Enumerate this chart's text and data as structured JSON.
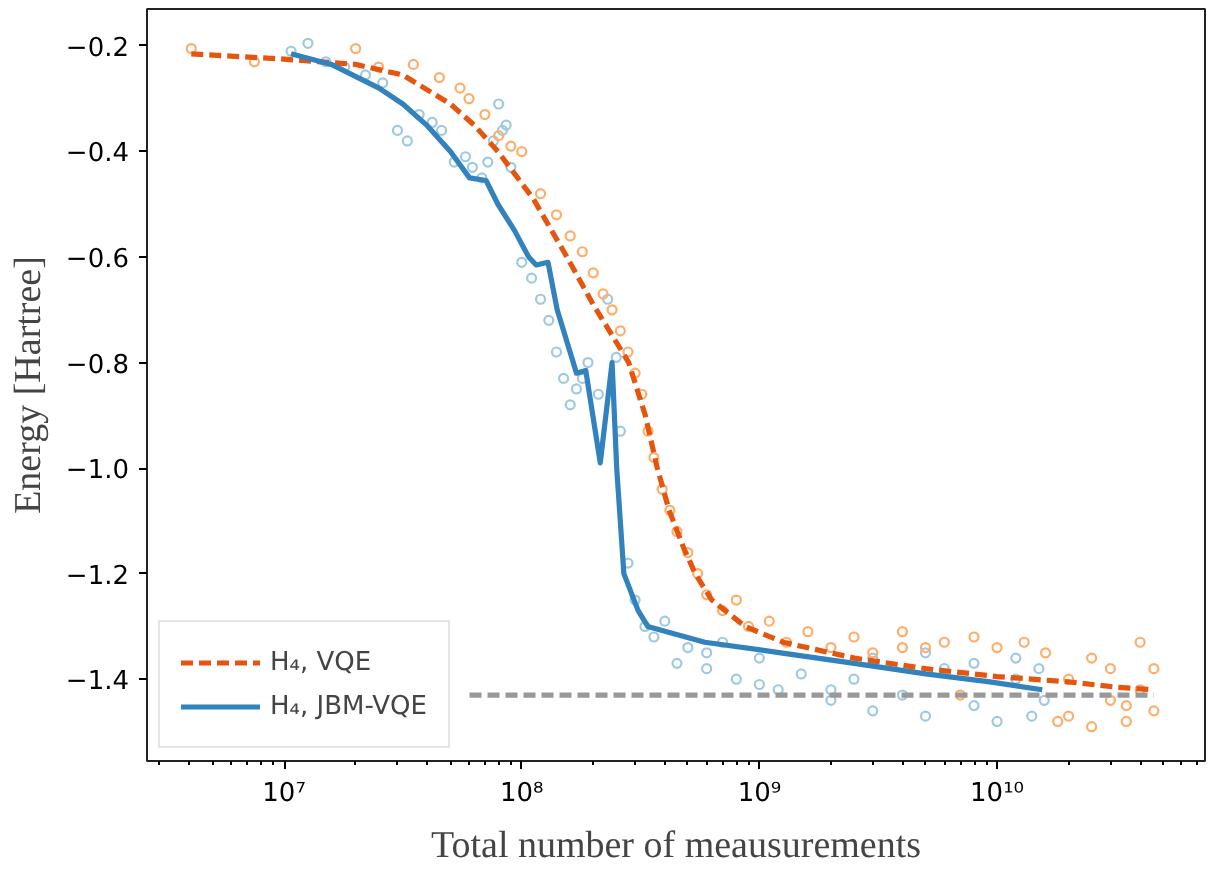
{
  "chart_data": {
    "type": "line",
    "xlabel": "Total number of meausurements",
    "ylabel": "Energy [Hartree]",
    "log": "x",
    "xlim": [
      2650000.0,
      75000000000.0
    ],
    "ylim": [
      -1.555,
      -0.13
    ],
    "xticks": [
      {
        "value": 10000000.0,
        "label": "10⁷"
      },
      {
        "value": 100000000.0,
        "label": "10⁸"
      },
      {
        "value": 1000000000.0,
        "label": "10⁹"
      },
      {
        "value": 10000000000.0,
        "label": "10¹⁰"
      }
    ],
    "yticks": [
      {
        "value": -1.4,
        "label": "−1.4"
      },
      {
        "value": -1.2,
        "label": "−1.2"
      },
      {
        "value": -1.0,
        "label": "−1.0"
      },
      {
        "value": -0.8,
        "label": "−0.8"
      },
      {
        "value": -0.6,
        "label": "−0.6"
      },
      {
        "value": -0.4,
        "label": "−0.4"
      },
      {
        "value": -0.2,
        "label": "−0.2"
      }
    ],
    "grid": false,
    "legend": "bottom left",
    "series": [
      {
        "type": "scatter",
        "marker": "circle",
        "color": "#9ecae1",
        "x": [
          10700000.0,
          12600000.0,
          15000000.0,
          18000000.0,
          22000000.0,
          26000000.0,
          30000000.0,
          33000000.0,
          37000000.0,
          42000000.0,
          46000000.0,
          52000000.0,
          58000000.0,
          62000000.0,
          68000000.0,
          72000000.0,
          76000000.0,
          80000000.0,
          83000000.0,
          86000000.0,
          90000000.0,
          100000000.0,
          110000000.0,
          120000000.0,
          130000000.0,
          140000000.0,
          150000000.0,
          160000000.0,
          170000000.0,
          180000000.0,
          190000000.0,
          210000000.0,
          230000000.0,
          250000000.0,
          260000000.0,
          280000000.0,
          300000000.0,
          330000000.0,
          360000000.0,
          400000000.0,
          450000000.0,
          500000000.0,
          600000000.0,
          700000000.0,
          800000000.0,
          1000000000.0,
          1200000000.0,
          1500000000.0,
          2000000000.0,
          2500000000.0,
          3000000000.0,
          4000000000.0,
          5000000000.0,
          6000000000.0,
          8000000000.0,
          10000000000.0,
          12000000000.0,
          14000000000.0,
          15800000000.0,
          3000000000.0,
          5000000000.0,
          8000000000.0,
          12000000000.0,
          15000000000.0,
          2000000000.0,
          1000000000.0,
          600000000.0
        ],
        "values": [
          -0.21,
          -0.195,
          -0.23,
          -0.24,
          -0.255,
          -0.27,
          -0.36,
          -0.38,
          -0.33,
          -0.345,
          -0.36,
          -0.42,
          -0.41,
          -0.43,
          -0.45,
          -0.42,
          -0.38,
          -0.31,
          -0.36,
          -0.35,
          -0.43,
          -0.61,
          -0.64,
          -0.68,
          -0.72,
          -0.78,
          -0.83,
          -0.88,
          -0.85,
          -0.83,
          -0.8,
          -0.86,
          -0.68,
          -0.79,
          -0.93,
          -1.18,
          -1.25,
          -1.3,
          -1.32,
          -1.29,
          -1.37,
          -1.34,
          -1.38,
          -1.33,
          -1.4,
          -1.36,
          -1.42,
          -1.39,
          -1.44,
          -1.4,
          -1.46,
          -1.43,
          -1.47,
          -1.38,
          -1.45,
          -1.48,
          -1.4,
          -1.47,
          -1.44,
          -1.36,
          -1.35,
          -1.37,
          -1.36,
          -1.38,
          -1.42,
          -1.41,
          -1.35
        ]
      },
      {
        "type": "scatter",
        "marker": "circle",
        "color": "#fdae6b",
        "x": [
          4070000.0,
          7500000.0,
          20000000.0,
          25000000.0,
          35000000.0,
          45000000.0,
          55000000.0,
          60000000.0,
          70000000.0,
          80000000.0,
          90000000.0,
          100000000.0,
          120000000.0,
          140000000.0,
          160000000.0,
          180000000.0,
          200000000.0,
          220000000.0,
          240000000.0,
          260000000.0,
          280000000.0,
          300000000.0,
          320000000.0,
          340000000.0,
          360000000.0,
          390000000.0,
          420000000.0,
          450000000.0,
          500000000.0,
          550000000.0,
          600000000.0,
          700000000.0,
          800000000.0,
          900000000.0,
          1100000000.0,
          1300000000.0,
          1600000000.0,
          2000000000.0,
          2500000000.0,
          3000000000.0,
          4000000000.0,
          5000000000.0,
          6000000000.0,
          8000000000.0,
          10000000000.0,
          13000000000.0,
          16000000000.0,
          20000000000.0,
          25000000000.0,
          30000000000.0,
          35000000000.0,
          40000000000.0,
          45700000000.0,
          20000000000.0,
          30000000000.0,
          40000000000.0,
          45700000000.0,
          25000000000.0,
          35000000000.0,
          18000000000.0,
          7000000000.0,
          4000000000.0
        ],
        "values": [
          -0.205,
          -0.23,
          -0.205,
          -0.24,
          -0.235,
          -0.26,
          -0.28,
          -0.3,
          -0.33,
          -0.37,
          -0.39,
          -0.4,
          -0.48,
          -0.52,
          -0.56,
          -0.59,
          -0.63,
          -0.67,
          -0.7,
          -0.74,
          -0.78,
          -0.82,
          -0.86,
          -0.93,
          -0.98,
          -1.04,
          -1.08,
          -1.12,
          -1.16,
          -1.2,
          -1.24,
          -1.27,
          -1.25,
          -1.3,
          -1.29,
          -1.33,
          -1.31,
          -1.34,
          -1.32,
          -1.35,
          -1.31,
          -1.34,
          -1.33,
          -1.32,
          -1.34,
          -1.33,
          -1.35,
          -1.47,
          -1.49,
          -1.38,
          -1.48,
          -1.33,
          -1.46,
          -1.4,
          -1.44,
          -1.42,
          -1.38,
          -1.36,
          -1.45,
          -1.48,
          -1.43,
          -1.34
        ]
      },
      {
        "line_style": "dashed",
        "color": "#999999",
        "x": [
          60300000.0,
          45700000000.0
        ],
        "values": [
          -1.43,
          -1.43
        ]
      },
      {
        "name": "H₄, VQE",
        "line_style": "dashed",
        "color": "#e6550d",
        "x": [
          4070000.0,
          10000000.0,
          20000000.0,
          31600000.0,
          50100000.0,
          63100000.0,
          79400000.0,
          112000000.0,
          155000000.0,
          200000000.0,
          282000000.0,
          331000000.0,
          372000000.0,
          417000000.0,
          479000000.0,
          537000000.0,
          631000000.0,
          871000000.0,
          1260000000.0,
          2510000000.0,
          5010000000.0,
          10000000000.0,
          20000000000.0,
          31600000000.0,
          45700000000.0
        ],
        "values": [
          -0.215,
          -0.225,
          -0.235,
          -0.255,
          -0.31,
          -0.35,
          -0.4,
          -0.49,
          -0.6,
          -0.69,
          -0.8,
          -0.9,
          -1.0,
          -1.08,
          -1.15,
          -1.2,
          -1.25,
          -1.3,
          -1.33,
          -1.36,
          -1.38,
          -1.395,
          -1.405,
          -1.415,
          -1.42
        ]
      },
      {
        "name": "H₄, JBM-VQE",
        "line_style": "solid",
        "color": "#3182bd",
        "x": [
          10700000.0,
          15800000.0,
          25100000.0,
          31600000.0,
          39800000.0,
          50100000.0,
          60300000.0,
          70800000.0,
          79400000.0,
          93300000.0,
          107000000.0,
          115000000.0,
          129000000.0,
          141000000.0,
          170000000.0,
          186000000.0,
          214000000.0,
          240000000.0,
          251000000.0,
          269000000.0,
          309000000.0,
          339000000.0,
          589000000.0,
          1230000000.0,
          2510000000.0,
          5010000000.0,
          9330000000.0,
          15500000000.0
        ],
        "values": [
          -0.215,
          -0.235,
          -0.28,
          -0.31,
          -0.35,
          -0.4,
          -0.45,
          -0.455,
          -0.5,
          -0.55,
          -0.6,
          -0.615,
          -0.61,
          -0.7,
          -0.82,
          -0.815,
          -0.99,
          -0.8,
          -1.0,
          -1.2,
          -1.27,
          -1.3,
          -1.33,
          -1.35,
          -1.37,
          -1.39,
          -1.405,
          -1.42
        ]
      }
    ]
  }
}
